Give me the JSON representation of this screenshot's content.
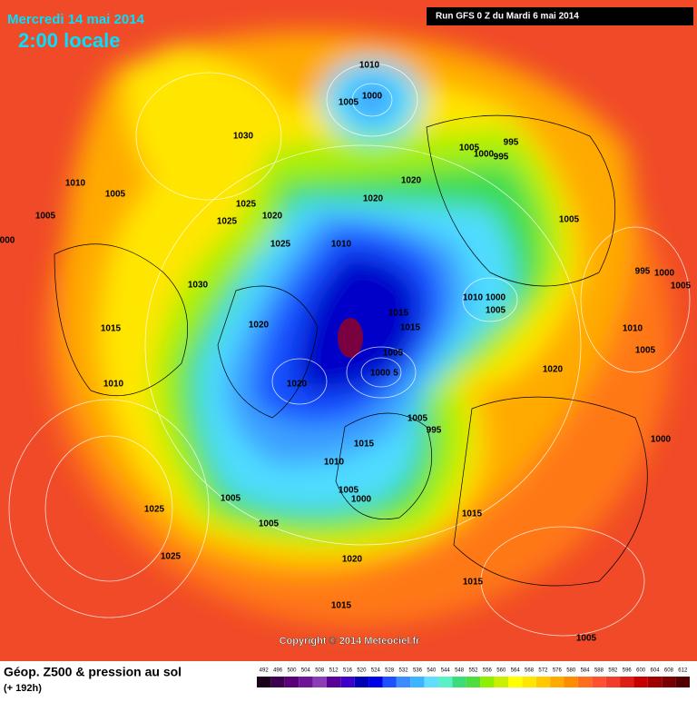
{
  "header": {
    "date": "Mercredi 14 mai 2014",
    "time": "2:00 locale",
    "run": "Run GFS 0 Z du Mardi 6 mai 2014"
  },
  "footer": {
    "copyright": "Copyright © 2014 Meteociel.fr"
  },
  "legend": {
    "title": "Géop. Z500 & pression au sol",
    "subtitle": "(+ 192h)",
    "ticks": [
      492,
      496,
      500,
      504,
      508,
      512,
      516,
      520,
      524,
      528,
      532,
      536,
      540,
      544,
      548,
      552,
      556,
      560,
      564,
      568,
      572,
      576,
      580,
      584,
      588,
      592,
      596,
      600,
      604,
      608,
      612
    ],
    "colors": [
      "#1a001a",
      "#3c0050",
      "#5a0078",
      "#6e1496",
      "#8c3cb4",
      "#5a0096",
      "#3c00c8",
      "#0000b4",
      "#0000e6",
      "#1e50ff",
      "#3c8cff",
      "#3cb4ff",
      "#64dcff",
      "#5af0c8",
      "#3cdc78",
      "#50dc3c",
      "#8cf000",
      "#c8f000",
      "#ffff00",
      "#ffe600",
      "#ffc800",
      "#ffaa00",
      "#ff8c00",
      "#ff6e1e",
      "#ff5032",
      "#f03c28",
      "#dc1e14",
      "#c80000",
      "#a00000",
      "#780000",
      "#500000"
    ]
  },
  "map": {
    "isobar_labels": [
      "1010",
      "1000",
      "1005",
      "1030",
      "1010",
      "1005",
      "1005",
      "000",
      "1025",
      "1025",
      "1020",
      "1025",
      "1010",
      "1020",
      "1020",
      "1005",
      "1000",
      "995",
      "995",
      "1005",
      "995",
      "1000",
      "1005",
      "1010",
      "1000",
      "1005",
      "1030",
      "1020",
      "1015",
      "1015",
      "1015",
      "1005",
      "1000",
      "5",
      "1020",
      "1010",
      "1010",
      "1005",
      "1020",
      "1005",
      "995",
      "1000",
      "1015",
      "1010",
      "1005",
      "1000",
      "1005",
      "1005",
      "1025",
      "1015",
      "1025",
      "1020",
      "1015",
      "1015",
      "1005"
    ]
  }
}
